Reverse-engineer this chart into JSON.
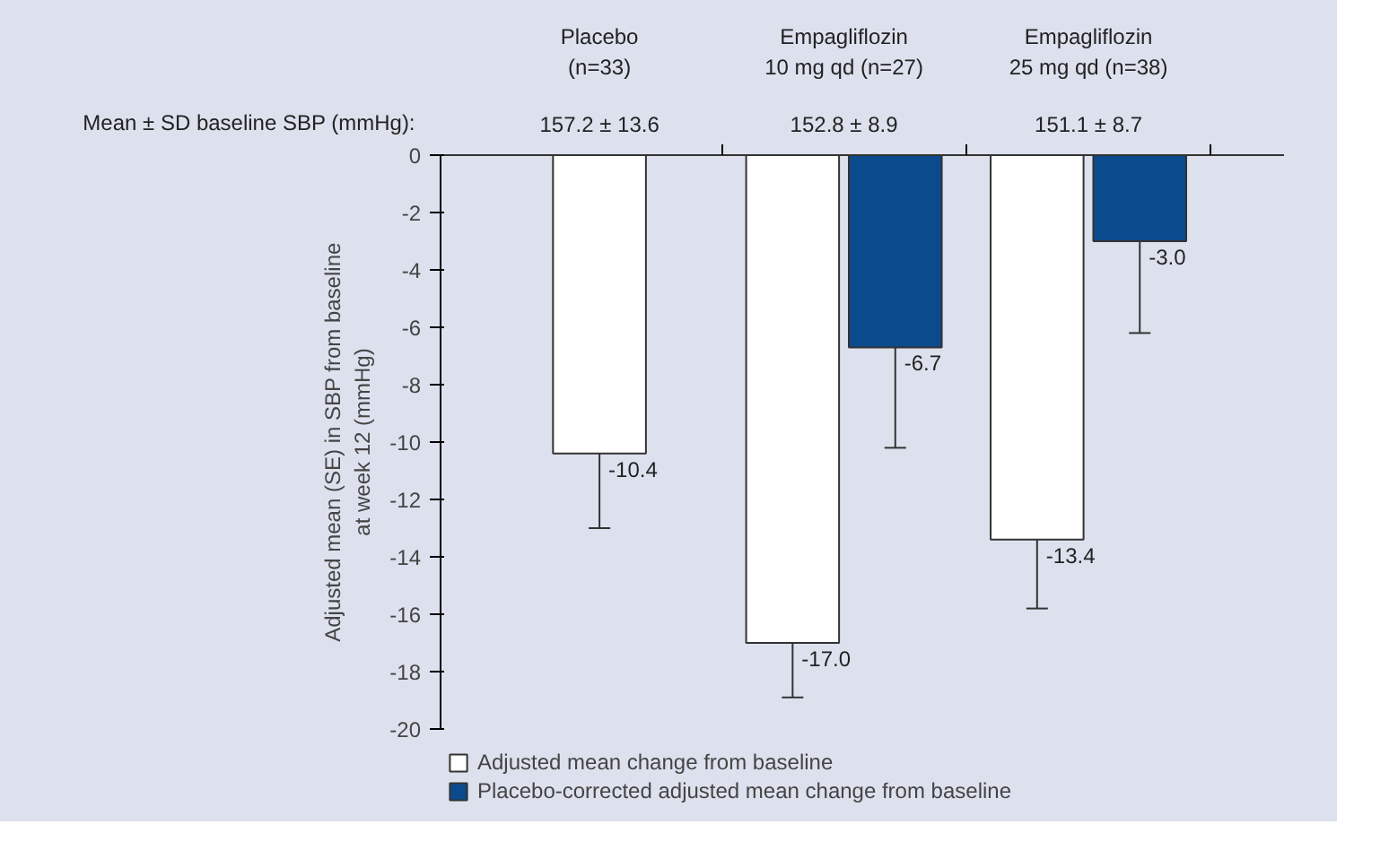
{
  "chart_data": {
    "type": "bar",
    "categories": [
      "Placebo\n(n=33)",
      "Empagliflozin\n10 mg qd (n=27)",
      "Empagliflozin\n25 mg qd (n=38)"
    ],
    "ylabel": "Adjusted mean (SE) in SBP from baseline\nat week 12 (mmHg)",
    "annotations": [
      "Mean ± SD baseline SBP (mmHg):",
      "157.2 ± 13.6",
      "152.8 ± 8.9",
      "151.1 ± 8.7"
    ],
    "series": [
      {
        "name": "Adjusted mean change from baseline",
        "color": "#ffffff",
        "values": [
          -10.4,
          -17.0,
          -13.4
        ],
        "errors": [
          [
            -13.0,
            -10.4
          ],
          [
            -18.9,
            -17.0
          ],
          [
            -15.8,
            -13.4
          ]
        ],
        "value_labels": [
          "-10.4",
          "-17.0",
          "-13.4"
        ]
      },
      {
        "name": "Placebo-corrected adjusted mean change from baseline",
        "color": "#0c4a8e",
        "values": [
          null,
          -6.7,
          -3.0
        ],
        "errors": [
          null,
          [
            -10.2,
            -6.7
          ],
          [
            -6.2,
            -3.0
          ]
        ],
        "value_labels": [
          null,
          "-6.7",
          "-3.0"
        ]
      }
    ],
    "ylim": [
      -20,
      0
    ],
    "yticks": [
      0,
      -2,
      -4,
      -6,
      -8,
      -10,
      -12,
      -14,
      -16,
      -18,
      -20
    ],
    "grid": false,
    "legend": "bottom"
  }
}
